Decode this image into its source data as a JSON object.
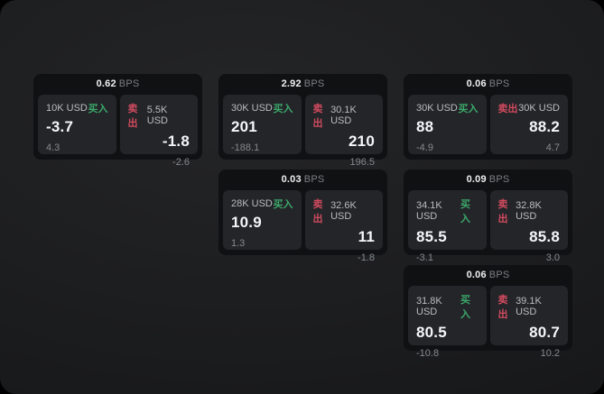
{
  "labels": {
    "buy": "买入",
    "sell": "卖出",
    "bps_unit": "BPS"
  },
  "colors": {
    "buy_green": "#3ca96b",
    "sell_red": "#d14b5f",
    "muted": "#7c7f84"
  },
  "cards": [
    {
      "bps": "0.62",
      "buy": {
        "amount": "10K USD",
        "value": "-3.7",
        "delta": "4.3"
      },
      "sell": {
        "amount": "5.5K USD",
        "value": "-1.8",
        "delta": "-2.6"
      }
    },
    {
      "bps": "2.92",
      "buy": {
        "amount": "30K USD",
        "value": "201",
        "delta": "-188.1"
      },
      "sell": {
        "amount": "30.1K USD",
        "value": "210",
        "delta": "196.5"
      }
    },
    {
      "bps": "0.06",
      "buy": {
        "amount": "30K USD",
        "value": "88",
        "delta": "-4.9"
      },
      "sell": {
        "amount": "30K USD",
        "value": "88.2",
        "delta": "4.7"
      }
    },
    {
      "bps": "0.03",
      "buy": {
        "amount": "28K USD",
        "value": "10.9",
        "delta": "1.3"
      },
      "sell": {
        "amount": "32.6K USD",
        "value": "11",
        "delta": "-1.8"
      }
    },
    {
      "bps": "0.09",
      "buy": {
        "amount": "34.1K USD",
        "value": "85.5",
        "delta": "-3.1"
      },
      "sell": {
        "amount": "32.8K USD",
        "value": "85.8",
        "delta": "3.0"
      }
    },
    {
      "bps": "0.06",
      "buy": {
        "amount": "31.8K USD",
        "value": "80.5",
        "delta": "-10.8"
      },
      "sell": {
        "amount": "39.1K USD",
        "value": "80.7",
        "delta": "10.2"
      }
    }
  ]
}
